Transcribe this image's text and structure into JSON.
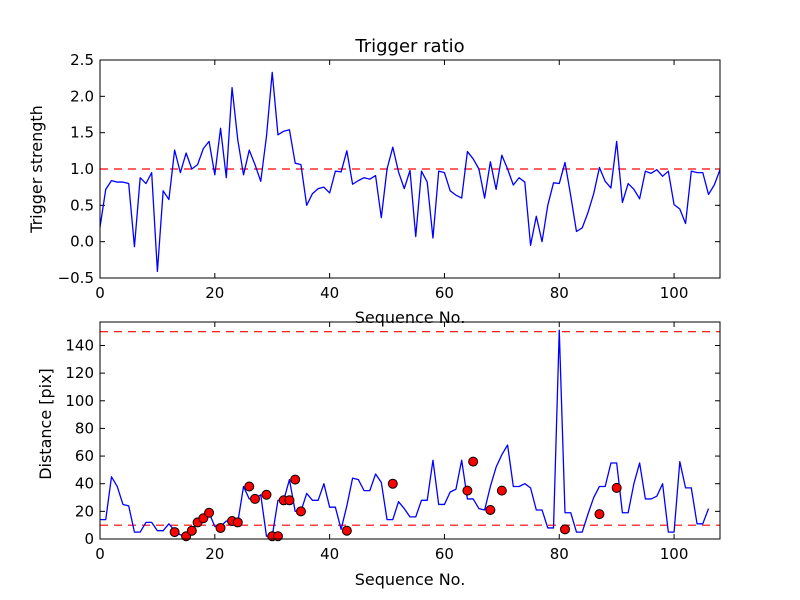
{
  "chart_data": [
    {
      "type": "line",
      "title": "Trigger ratio",
      "xlabel": "Sequence No.",
      "ylabel": "Trigger strength",
      "xlim": [
        0,
        108
      ],
      "ylim": [
        -0.5,
        2.5
      ],
      "xticks": [
        0,
        20,
        40,
        60,
        80,
        100
      ],
      "yticks": [
        -0.5,
        0.0,
        0.5,
        1.0,
        1.5,
        2.0,
        2.5
      ],
      "ytick_labels": [
        "−0.5",
        "0.0",
        "0.5",
        "1.0",
        "1.5",
        "2.0",
        "2.5"
      ],
      "reference_lines": [
        1.0
      ],
      "colors": {
        "series": "#0000ff",
        "reference": "#ff0000"
      },
      "series": [
        {
          "name": "trigger strength",
          "values": [
            0.2,
            0.72,
            0.84,
            0.82,
            0.82,
            0.8,
            -0.07,
            0.88,
            0.8,
            0.95,
            -0.41,
            0.7,
            0.58,
            1.26,
            0.95,
            1.22,
            1.0,
            1.06,
            1.28,
            1.38,
            0.92,
            1.56,
            0.88,
            2.12,
            1.4,
            0.92,
            1.26,
            1.06,
            0.83,
            1.45,
            2.33,
            1.47,
            1.52,
            1.54,
            1.08,
            1.06,
            0.5,
            0.66,
            0.73,
            0.75,
            0.67,
            0.97,
            0.96,
            1.25,
            0.79,
            0.84,
            0.88,
            0.86,
            0.91,
            0.33,
            1.0,
            1.3,
            0.96,
            0.73,
            0.98,
            0.07,
            0.97,
            0.82,
            0.05,
            0.97,
            0.95,
            0.7,
            0.64,
            0.6,
            1.24,
            1.14,
            1.0,
            0.6,
            1.1,
            0.72,
            1.19,
            1.0,
            0.78,
            0.88,
            0.82,
            -0.05,
            0.35,
            0.0,
            0.5,
            0.81,
            0.8,
            1.09,
            0.63,
            0.14,
            0.19,
            0.4,
            0.66,
            1.02,
            0.83,
            0.74,
            1.38,
            0.54,
            0.8,
            0.72,
            0.59,
            0.97,
            0.94,
            0.99,
            0.9,
            0.97,
            0.51,
            0.45,
            0.25,
            0.97,
            0.95,
            0.95,
            0.65,
            0.78,
            0.99
          ]
        }
      ]
    },
    {
      "type": "line",
      "title": "",
      "xlabel": "Sequence No.",
      "ylabel": "Distance [pix]",
      "xlim": [
        0,
        108
      ],
      "ylim": [
        0,
        157
      ],
      "xticks": [
        0,
        20,
        40,
        60,
        80,
        100
      ],
      "yticks": [
        0,
        20,
        40,
        60,
        80,
        100,
        120,
        140
      ],
      "ytick_labels": [
        "0",
        "20",
        "40",
        "60",
        "80",
        "100",
        "120",
        "140"
      ],
      "reference_lines": [
        10,
        150
      ],
      "colors": {
        "series": "#0000ff",
        "reference": "#ff0000",
        "markers": "#ff0000"
      },
      "series": [
        {
          "name": "distance",
          "values": [
            14,
            14,
            45,
            38,
            25,
            24,
            5,
            5,
            12,
            12,
            6,
            6,
            11,
            6,
            3,
            3,
            7,
            12,
            15,
            19,
            9,
            9,
            13,
            12,
            12,
            38,
            29,
            29,
            32,
            2,
            2,
            28,
            28,
            43,
            20,
            20,
            33,
            28,
            28,
            40,
            23,
            23,
            7,
            24,
            44,
            43,
            35,
            35,
            47,
            41,
            14,
            14,
            27,
            22,
            16,
            16,
            28,
            28,
            57,
            25,
            25,
            34,
            36,
            57,
            29,
            29,
            22,
            21,
            38,
            52,
            61,
            68,
            38,
            38,
            40,
            37,
            21,
            21,
            8,
            8,
            151,
            19,
            19,
            5,
            5,
            18,
            30,
            38,
            38,
            55,
            55,
            19,
            19,
            40,
            55,
            29,
            29,
            31,
            40,
            5,
            5,
            56,
            37,
            37,
            11,
            11,
            22
          ]
        },
        {
          "name": "flagged",
          "style": "markers",
          "points": [
            [
              13,
              5
            ],
            [
              15,
              2
            ],
            [
              16,
              6
            ],
            [
              17,
              12
            ],
            [
              18,
              15
            ],
            [
              19,
              19
            ],
            [
              21,
              8
            ],
            [
              23,
              13
            ],
            [
              24,
              12
            ],
            [
              26,
              38
            ],
            [
              27,
              29
            ],
            [
              29,
              32
            ],
            [
              30,
              2
            ],
            [
              31,
              2
            ],
            [
              32,
              28
            ],
            [
              33,
              28
            ],
            [
              34,
              43
            ],
            [
              35,
              20
            ],
            [
              43,
              6
            ],
            [
              51,
              40
            ],
            [
              64,
              35
            ],
            [
              65,
              56
            ],
            [
              68,
              21
            ],
            [
              70,
              35
            ],
            [
              81,
              7
            ],
            [
              87,
              18
            ],
            [
              90,
              37
            ]
          ]
        }
      ]
    }
  ]
}
